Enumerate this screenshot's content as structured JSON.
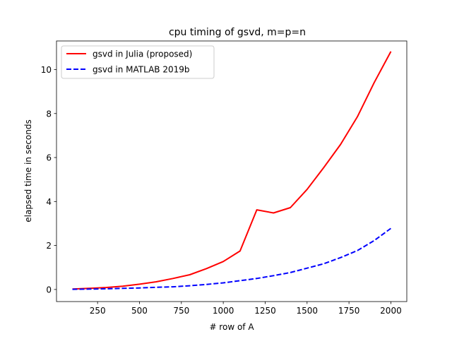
{
  "chart_data": {
    "type": "line",
    "title": "cpu timing of gsvd, m=p=n",
    "xlabel": "# row of A",
    "ylabel": "elapsed time in seconds",
    "xlim": [
      5,
      2095
    ],
    "ylim": [
      -0.55,
      11.3
    ],
    "xticks": [
      250,
      500,
      750,
      1000,
      1250,
      1500,
      1750,
      2000
    ],
    "yticks": [
      0,
      2,
      4,
      6,
      8,
      10
    ],
    "x": [
      100,
      200,
      300,
      400,
      500,
      600,
      700,
      800,
      900,
      1000,
      1100,
      1200,
      1300,
      1400,
      1500,
      1600,
      1700,
      1800,
      1900,
      2000
    ],
    "series": [
      {
        "name": "gsvd in Julia (proposed)",
        "color": "#ff0000",
        "style": "solid",
        "values": [
          0.02,
          0.05,
          0.09,
          0.15,
          0.24,
          0.35,
          0.5,
          0.67,
          0.95,
          1.27,
          1.75,
          3.62,
          3.48,
          3.72,
          4.55,
          5.55,
          6.6,
          7.85,
          9.4,
          10.82
        ]
      },
      {
        "name": "gsvd in MATLAB 2019b",
        "color": "#0000ff",
        "style": "dashed",
        "values": [
          0.01,
          0.02,
          0.03,
          0.05,
          0.07,
          0.1,
          0.12,
          0.17,
          0.23,
          0.3,
          0.4,
          0.5,
          0.63,
          0.77,
          0.97,
          1.17,
          1.45,
          1.77,
          2.22,
          2.78
        ]
      }
    ],
    "grid": false,
    "legend_position": "upper-left"
  }
}
